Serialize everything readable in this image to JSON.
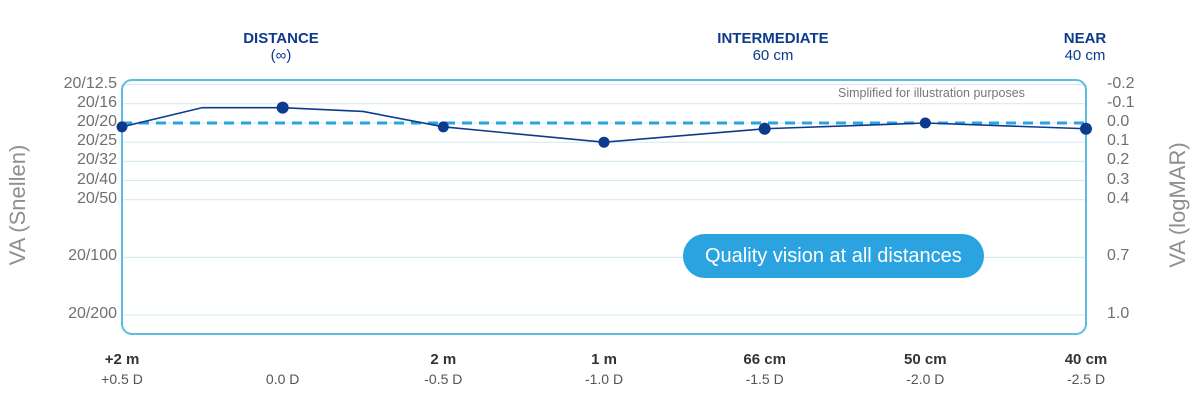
{
  "zones": [
    {
      "title": "DISTANCE",
      "sub": "(∞)"
    },
    {
      "title": "INTERMEDIATE",
      "sub": "60 cm"
    },
    {
      "title": "NEAR",
      "sub": "40 cm"
    }
  ],
  "left_axis_label": "VA (Snellen)",
  "right_axis_label": "VA (logMAR)",
  "note": "Simplified for illustration purposes",
  "callout": "Quality vision at all distances",
  "colors": {
    "frame": "#5bbde0",
    "line": "#0e3a8c",
    "reference": "#2aa3e0",
    "grid": "#cfe8f3"
  },
  "chart_data": {
    "type": "line",
    "x": [
      0.5,
      0.0,
      -0.5,
      -1.0,
      -1.5,
      -2.0,
      -2.5
    ],
    "x_reversed": true,
    "xlim": [
      0.5,
      -2.5
    ],
    "x_ticks": [
      {
        "x": 0.5,
        "distance": "+2 m",
        "defocus": "+0.5 D"
      },
      {
        "x": 0.0,
        "distance": "",
        "defocus": "0.0 D"
      },
      {
        "x": -0.5,
        "distance": "2 m",
        "defocus": "-0.5 D"
      },
      {
        "x": -1.0,
        "distance": "1 m",
        "defocus": "-1.0 D"
      },
      {
        "x": -1.5,
        "distance": "66 cm",
        "defocus": "-1.5 D"
      },
      {
        "x": -2.0,
        "distance": "50 cm",
        "defocus": "-2.0 D"
      },
      {
        "x": -2.5,
        "distance": "40 cm",
        "defocus": "-2.5 D"
      }
    ],
    "ylim": [
      1.1,
      -0.25
    ],
    "y_reversed": true,
    "y_ticks": [
      {
        "logmar": -0.2,
        "right": "-0.2",
        "left": "20/12.5"
      },
      {
        "logmar": -0.1,
        "right": "-0.1",
        "left": "20/16"
      },
      {
        "logmar": 0.0,
        "right": "0.0",
        "left": "20/20"
      },
      {
        "logmar": 0.1,
        "right": "0.1",
        "left": "20/25"
      },
      {
        "logmar": 0.2,
        "right": "0.2",
        "left": "20/32"
      },
      {
        "logmar": 0.3,
        "right": "0.3",
        "left": "20/40"
      },
      {
        "logmar": 0.4,
        "right": "0.4",
        "left": "20/50"
      },
      {
        "logmar": 0.7,
        "right": "0.7",
        "left": "20/100"
      },
      {
        "logmar": 1.0,
        "right": "1.0",
        "left": "20/200"
      }
    ],
    "curve": [
      {
        "x": 0.5,
        "y": 0.02
      },
      {
        "x": 0.25,
        "y": -0.08
      },
      {
        "x": 0.0,
        "y": -0.08
      },
      {
        "x": -0.25,
        "y": -0.06
      },
      {
        "x": -0.5,
        "y": 0.02
      },
      {
        "x": -1.0,
        "y": 0.1
      },
      {
        "x": -1.5,
        "y": 0.03
      },
      {
        "x": -2.0,
        "y": 0.0
      },
      {
        "x": -2.5,
        "y": 0.03
      }
    ],
    "points": [
      {
        "x": 0.5,
        "y": 0.02
      },
      {
        "x": 0.0,
        "y": -0.08
      },
      {
        "x": -0.5,
        "y": 0.02
      },
      {
        "x": -1.0,
        "y": 0.1
      },
      {
        "x": -1.5,
        "y": 0.03
      },
      {
        "x": -2.0,
        "y": 0.0
      },
      {
        "x": -2.5,
        "y": 0.03
      }
    ],
    "reference_line": {
      "y": 0.0,
      "style": "dashed"
    },
    "grid": true
  }
}
